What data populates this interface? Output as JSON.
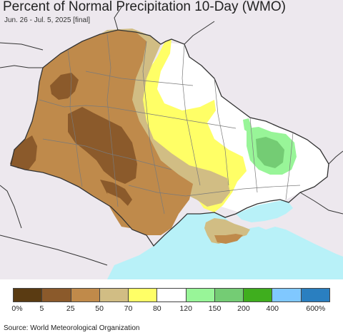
{
  "header": {
    "title": "Percent of Normal Precipitation 10-Day (WMO)",
    "subtitle": "Jun. 26 - Jul. 5, 2025 [final]"
  },
  "legend": {
    "labels": [
      "0%",
      "5",
      "25",
      "50",
      "70",
      "80",
      "120",
      "150",
      "200",
      "400",
      "600%"
    ],
    "colors": [
      "#5a3b12",
      "#8b5a2b",
      "#c08a4a",
      "#d1bd84",
      "#ffff66",
      "#ffffff",
      "#98f598",
      "#74cc74",
      "#3fae1e",
      "#80c8ff",
      "#2a7fc0"
    ]
  },
  "map": {
    "colors": {
      "land_outside": "#ede8ee",
      "sea": "#b8f1f8",
      "dark_brown": "#8b5a2b",
      "brown": "#bf8a4b",
      "tan": "#d1bd84",
      "yellow": "#ffff66",
      "white": "#ffffff",
      "light_green": "#98f598",
      "green": "#74cc74",
      "border": "#333333",
      "oblast_border": "#7a7a7a"
    }
  },
  "footer": {
    "source": "Source: World Meteorological Organization"
  }
}
